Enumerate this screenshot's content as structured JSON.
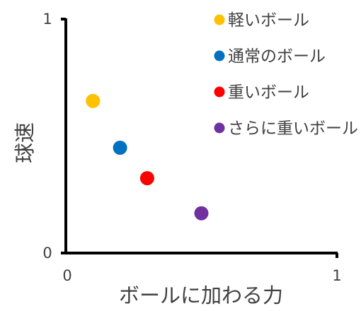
{
  "chart_data": {
    "type": "scatter",
    "title": "",
    "xlabel": "ボールに加わる力",
    "ylabel": "球速",
    "xlim": [
      0,
      1
    ],
    "ylim": [
      0,
      1
    ],
    "x_ticks": [
      "0",
      "1"
    ],
    "y_ticks": [
      "0",
      "1"
    ],
    "grid": false,
    "legend_position": "top-right",
    "series": [
      {
        "name": "軽いボール",
        "color": "#FFC000",
        "x": [
          0.1
        ],
        "y": [
          0.65
        ]
      },
      {
        "name": "通常のボール",
        "color": "#0070C0",
        "x": [
          0.2
        ],
        "y": [
          0.45
        ]
      },
      {
        "name": "重いボール",
        "color": "#FF0000",
        "x": [
          0.3
        ],
        "y": [
          0.32
        ]
      },
      {
        "name": "さらに重いボール",
        "color": "#7030A0",
        "x": [
          0.5
        ],
        "y": [
          0.17
        ]
      }
    ]
  }
}
